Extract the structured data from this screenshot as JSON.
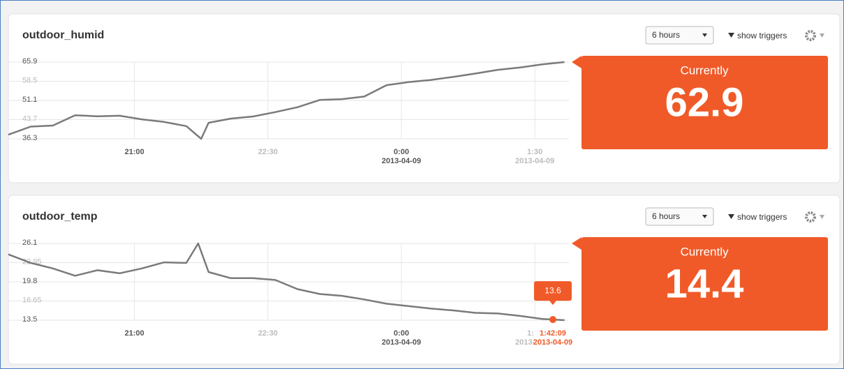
{
  "panels": [
    {
      "title": "outdoor_humid",
      "range": "6 hours",
      "triggers": "show triggers",
      "current_label": "Currently",
      "current_value": 62.9,
      "chart_data": {
        "type": "line",
        "color": "#7a7a7a",
        "x": [
          "19:35",
          "19:50",
          "20:05",
          "20:20",
          "20:35",
          "20:50",
          "21:05",
          "21:20",
          "21:35",
          "21:45",
          "21:50",
          "22:05",
          "22:20",
          "22:35",
          "22:50",
          "23:05",
          "23:20",
          "23:35",
          "23:50",
          "0:05",
          "0:20",
          "0:35",
          "0:50",
          "1:05",
          "1:20",
          "1:35",
          "1:50"
        ],
        "values": [
          37.9,
          41.0,
          41.4,
          45.4,
          45.0,
          45.2,
          43.8,
          42.8,
          41.2,
          36.3,
          42.5,
          44.1,
          44.9,
          46.6,
          48.5,
          51.3,
          51.6,
          52.6,
          57.0,
          58.2,
          59.0,
          60.2,
          61.5,
          62.9,
          63.8,
          65.0,
          65.9
        ],
        "xlim": [
          "19:35",
          "1:53"
        ],
        "xticks": [
          "21:00",
          "22:30",
          "0:00",
          "1:30"
        ],
        "xtick_dates": [
          null,
          null,
          "2013-04-09",
          "2013-04-09"
        ],
        "xtick_colors": [
          "#555",
          "#bbb",
          "#555",
          "#bbb"
        ],
        "ylim": [
          36.3,
          65.9
        ],
        "yticks": [
          36.3,
          43.7,
          51.1,
          58.5,
          65.9
        ],
        "ytick_colors": [
          "#555",
          "#bbb",
          "#555",
          "#bbb",
          "#555"
        ],
        "grid": true
      }
    },
    {
      "title": "outdoor_temp",
      "range": "6 hours",
      "triggers": "show triggers",
      "current_label": "Currently",
      "current_value": 14.4,
      "chart_data": {
        "type": "line",
        "color": "#7a7a7a",
        "x": [
          "19:35",
          "19:50",
          "20:05",
          "20:20",
          "20:35",
          "20:50",
          "21:05",
          "21:20",
          "21:35",
          "21:43",
          "21:50",
          "22:05",
          "22:20",
          "22:35",
          "22:50",
          "23:05",
          "23:20",
          "23:35",
          "23:50",
          "0:05",
          "0:20",
          "0:35",
          "0:50",
          "1:05",
          "1:20",
          "1:35",
          "1:50"
        ],
        "values": [
          24.3,
          22.9,
          22.0,
          20.8,
          21.7,
          21.2,
          22.0,
          23.0,
          22.9,
          26.1,
          21.4,
          20.4,
          20.4,
          20.1,
          18.6,
          17.8,
          17.5,
          16.9,
          16.2,
          15.8,
          15.4,
          15.1,
          14.7,
          14.6,
          14.2,
          13.7,
          13.5
        ],
        "xlim": [
          "19:35",
          "1:53"
        ],
        "xticks": [
          "21:00",
          "22:30",
          "0:00",
          "1:30"
        ],
        "xtick_dates": [
          null,
          null,
          "2013-04-09",
          "2013-04-09"
        ],
        "xtick_colors": [
          "#555",
          "#bbb",
          "#555",
          "#bbb"
        ],
        "ylim": [
          13.5,
          26.1
        ],
        "yticks": [
          13.5,
          16.65,
          19.8,
          22.95,
          26.1
        ],
        "ytick_colors": [
          "#555",
          "#bbb",
          "#555",
          "#bbb",
          "#555"
        ],
        "grid": true,
        "hover": {
          "value": 13.6,
          "time": "1:42:09",
          "date": "2013-04-09",
          "color": "#f05a28"
        }
      }
    }
  ]
}
